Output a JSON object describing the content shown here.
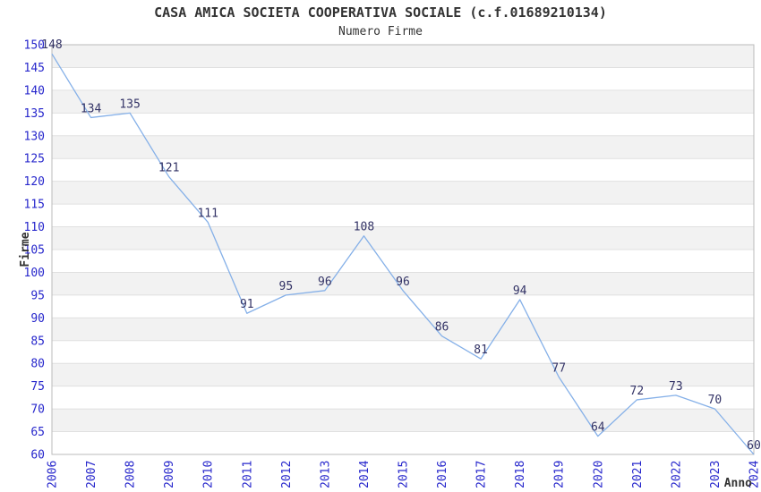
{
  "chart_data": {
    "type": "line",
    "title": "CASA AMICA SOCIETA COOPERATIVA SOCIALE (c.f.01689210134)",
    "subtitle": "Numero Firme",
    "xlabel": "Anno",
    "ylabel": "Firme",
    "categories": [
      "2006",
      "2007",
      "2008",
      "2009",
      "2010",
      "2011",
      "2012",
      "2013",
      "2014",
      "2015",
      "2016",
      "2017",
      "2018",
      "2019",
      "2020",
      "2021",
      "2022",
      "2023",
      "2024"
    ],
    "values": [
      148,
      134,
      135,
      121,
      111,
      91,
      95,
      96,
      108,
      96,
      86,
      81,
      94,
      77,
      64,
      72,
      73,
      70,
      60
    ],
    "ylim": [
      60,
      150
    ],
    "ytick_step": 5,
    "grid": true,
    "alternating_bands": true,
    "legend": "none",
    "data_labels": true,
    "x_tick_rotation": -90,
    "colors": {
      "line": "#85b0e8",
      "tick_label": "#2727cc",
      "data_label": "#333366",
      "axis_title": "#333333",
      "title_text": "#333333",
      "band_gray": "#f2f2f2",
      "band_white": "#ffffff",
      "gridline": "#e0e0e0",
      "plot_border": "#bbbbbb",
      "background": "#ffffff"
    }
  }
}
